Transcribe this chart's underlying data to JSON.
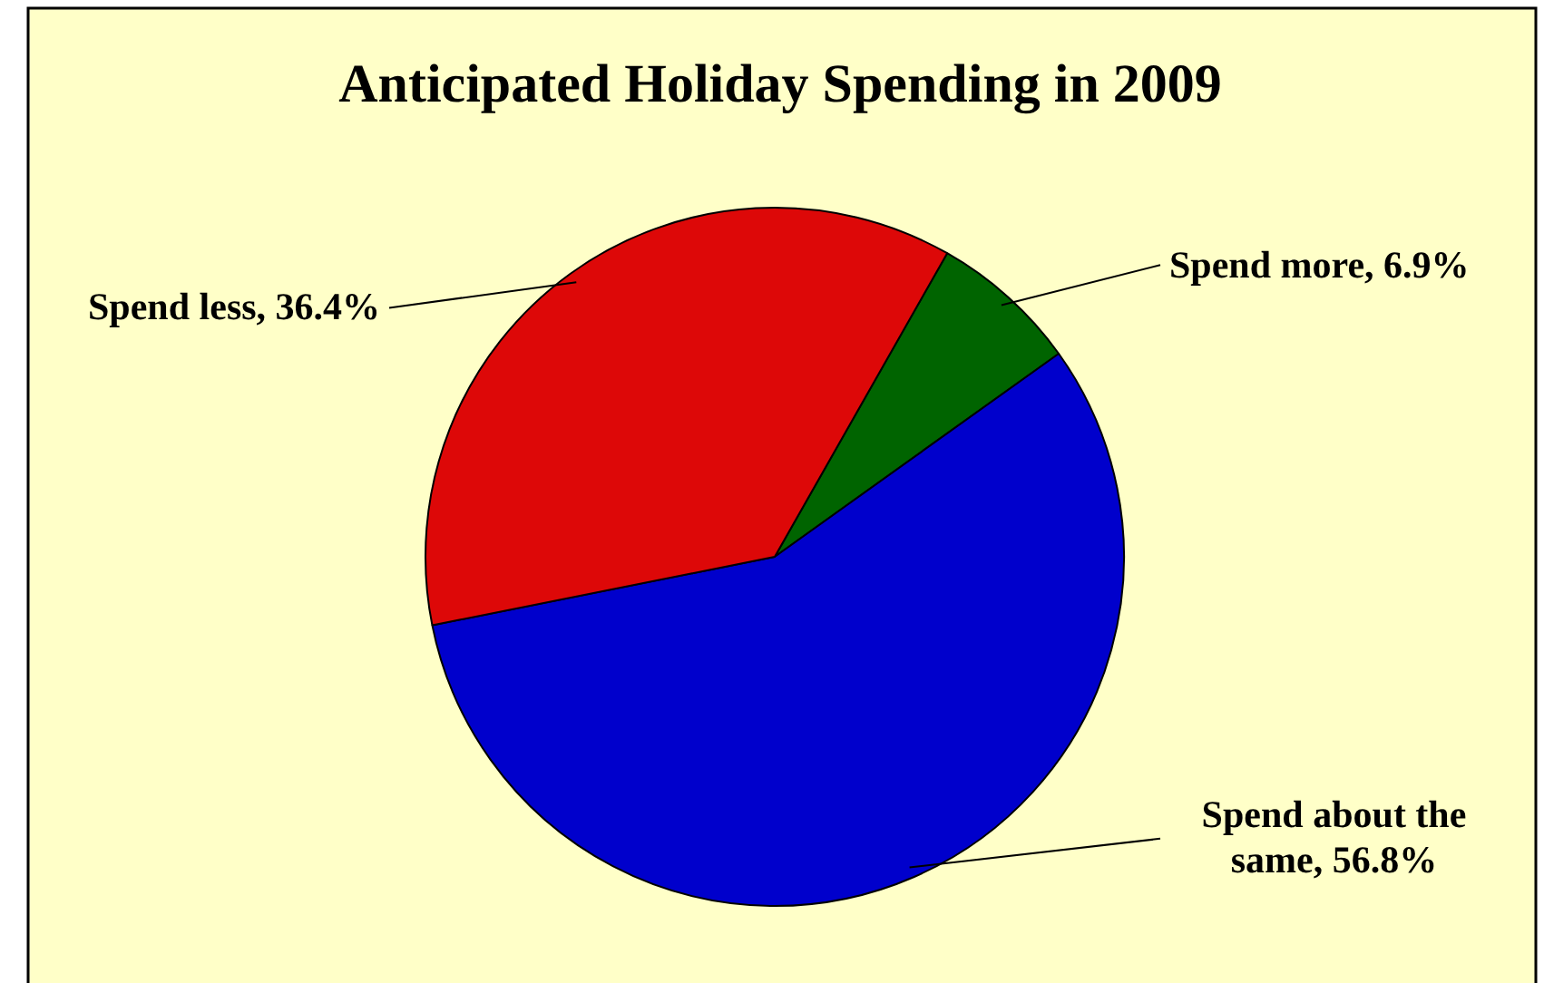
{
  "chart_data": {
    "type": "pie",
    "title": "Anticipated Holiday Spending in 2009",
    "categories": [
      "Spend more",
      "Spend about the same",
      "Spend less"
    ],
    "values": [
      6.9,
      56.8,
      36.4
    ],
    "colors": [
      "#006400",
      "#0000cc",
      "#dd0808"
    ],
    "value_labels": [
      "6.9%",
      "56.8%",
      "36.4%"
    ],
    "legend": false
  }
}
